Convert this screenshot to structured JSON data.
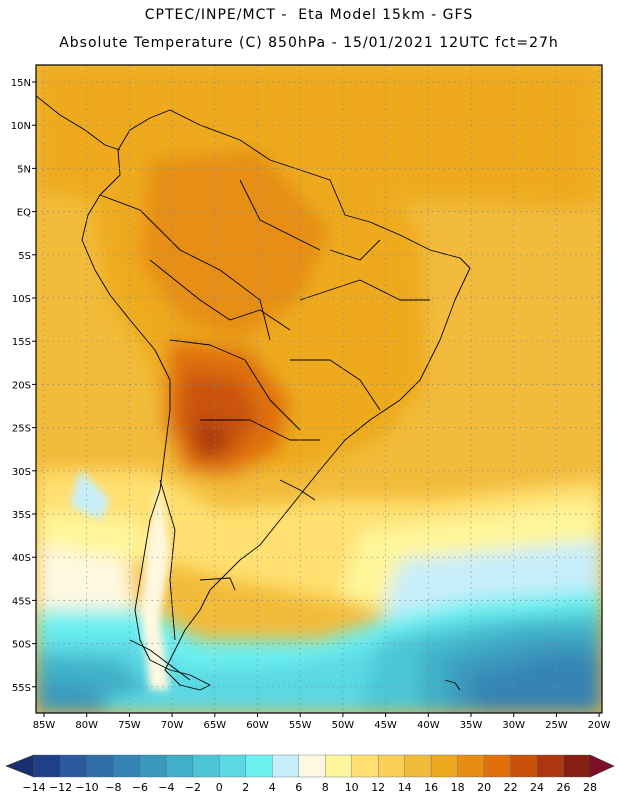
{
  "header": {
    "line1": "CPTEC/INPE/MCT -  Eta Model 15km - GFS",
    "line2": "Absolute Temperature (C) 850hPa - 15/01/2021 12UTC fct=27h"
  },
  "map": {
    "lat_labels": [
      "15N",
      "10N",
      "5N",
      "EQ",
      "5S",
      "10S",
      "15S",
      "20S",
      "25S",
      "30S",
      "35S",
      "40S",
      "45S",
      "50S",
      "55S"
    ],
    "lon_labels": [
      "85W",
      "80W",
      "75W",
      "70W",
      "65W",
      "60W",
      "55W",
      "50W",
      "45W",
      "40W",
      "35W",
      "30W",
      "25W",
      "20W"
    ]
  },
  "colorbar": {
    "labels": [
      "-14",
      "-12",
      "-10",
      "-8",
      "-6",
      "-4",
      "-2",
      "0",
      "2",
      "4",
      "6",
      "8",
      "10",
      "12",
      "14",
      "16",
      "18",
      "20",
      "22",
      "24",
      "26",
      "28"
    ],
    "colors": [
      "#1f3f88",
      "#2a5b9c",
      "#2f6ea8",
      "#3583b4",
      "#3a98bd",
      "#3fb0c8",
      "#4cc6d6",
      "#5ad8e4",
      "#6cf0f0",
      "#c8eefa",
      "#fff8e0",
      "#fff59a",
      "#ffe070",
      "#f9cf55",
      "#f2bb3a",
      "#eeaa1f",
      "#e68e12",
      "#e0700a",
      "#c9520a",
      "#ac370e",
      "#852010"
    ],
    "low_arrow_color": "#1a2f6e",
    "high_arrow_color": "#7e0d2a"
  }
}
